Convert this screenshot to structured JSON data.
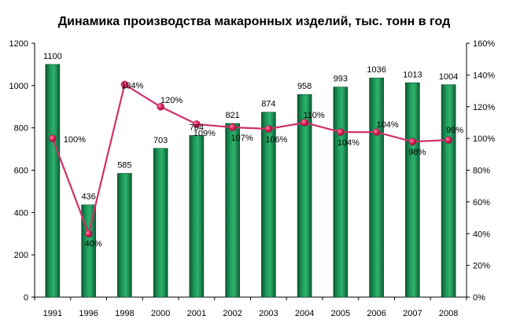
{
  "chart_data": {
    "type": "bar",
    "title": "Динамика производства макаронных изделий, тыс. тонн в год",
    "categories": [
      "1991",
      "1996",
      "1998",
      "2000",
      "2001",
      "2002",
      "2003",
      "2004",
      "2005",
      "2006",
      "2007",
      "2008"
    ],
    "series": [
      {
        "type": "bar",
        "axis": "left",
        "values": [
          1100,
          436,
          585,
          703,
          764,
          821,
          874,
          958,
          993,
          1036,
          1013,
          1004
        ],
        "labels": [
          "1100",
          "436",
          "585",
          "703",
          "764",
          "821",
          "874",
          "958",
          "993",
          "1036",
          "1013",
          "1004"
        ],
        "color": "#0f7a45"
      },
      {
        "type": "line",
        "axis": "right",
        "values": [
          100,
          40,
          134,
          120,
          109,
          107,
          106,
          110,
          104,
          104,
          98,
          99
        ],
        "labels": [
          "100%",
          "40%",
          "134%",
          "120%",
          "109%",
          "107%",
          "106%",
          "110%",
          "104%",
          "104%",
          "98%",
          "99%"
        ],
        "color": "#d0306a"
      }
    ],
    "y_left": {
      "min": 0,
      "max": 1200,
      "ticks": [
        "0",
        "200",
        "400",
        "600",
        "800",
        "1000",
        "1200"
      ]
    },
    "y_right": {
      "min": 0,
      "max": 160,
      "ticks": [
        "0%",
        "20%",
        "40%",
        "60%",
        "80%",
        "100%",
        "120%",
        "140%",
        "160%"
      ]
    },
    "grid": false,
    "legend": "none"
  }
}
